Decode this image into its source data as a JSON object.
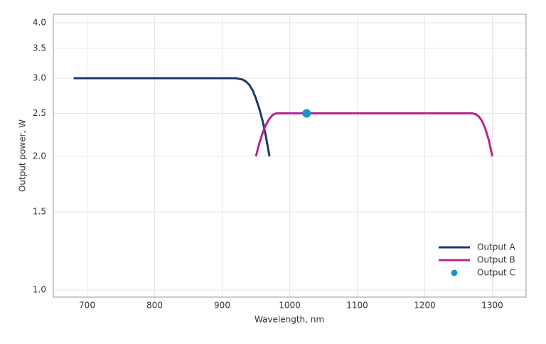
{
  "chart_data": {
    "type": "line",
    "x_label": "Wavelength, nm",
    "y_label": "Output power, W",
    "xlim": [
      650,
      1350
    ],
    "xticks": [
      700,
      800,
      900,
      1000,
      1100,
      1200,
      1300
    ],
    "ylim": [
      0.964,
      4.18
    ],
    "log_y": true,
    "yticks": [
      {
        "value": 1,
        "label": "1.0"
      },
      1.5,
      {
        "value": 2,
        "label": "2.0"
      },
      2.5,
      {
        "value": 3,
        "label": "3.0"
      },
      3.5,
      {
        "value": 4,
        "label": "4.0"
      }
    ],
    "grid": true,
    "legend": "lower right",
    "series": [
      {
        "name": "Output A",
        "color": "#1b3a6b",
        "style": "line",
        "x": [
          680,
          800,
          900,
          920,
          930,
          935,
          940,
          945,
          950,
          955,
          960,
          965,
          970
        ],
        "values": [
          3.0,
          3.0,
          3.0,
          3.0,
          2.98,
          2.95,
          2.9,
          2.82,
          2.7,
          2.56,
          2.4,
          2.21,
          2.0
        ]
      },
      {
        "name": "Output B",
        "color": "#b5258f",
        "style": "line",
        "x": [
          950,
          955,
          960,
          965,
          970,
          975,
          980,
          1100,
          1200,
          1270,
          1275,
          1280,
          1285,
          1290,
          1295,
          1300
        ],
        "values": [
          2.0,
          2.14,
          2.26,
          2.36,
          2.43,
          2.48,
          2.5,
          2.5,
          2.5,
          2.5,
          2.49,
          2.46,
          2.4,
          2.3,
          2.17,
          2.0
        ]
      },
      {
        "name": "Output C",
        "color": "#1e90c8",
        "style": "marker",
        "x": [
          1025
        ],
        "values": [
          2.5
        ]
      }
    ]
  }
}
